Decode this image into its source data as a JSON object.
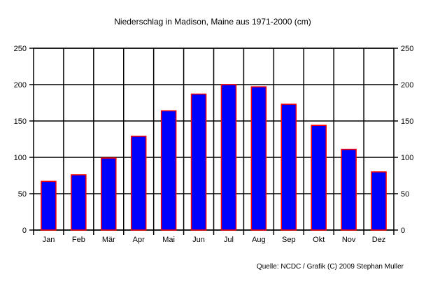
{
  "chart_data": {
    "type": "bar",
    "title": "Niederschlag in Madison, Maine aus 1971-2000 (cm)",
    "categories": [
      "Jan",
      "Feb",
      "Mär",
      "Apr",
      "Mai",
      "Jun",
      "Jul",
      "Aug",
      "Sep",
      "Okt",
      "Nov",
      "Dez"
    ],
    "values": [
      67,
      76,
      99,
      129,
      164,
      187,
      200,
      197,
      173,
      144,
      111,
      80
    ],
    "ylim": [
      0,
      250
    ],
    "yticks": [
      0,
      50,
      100,
      150,
      200,
      250
    ],
    "xlabel": "",
    "ylabel": "",
    "grid": true,
    "source": "Quelle: NCDC / Grafik (C) 2009 Stephan Muller",
    "bar_fill": "#0000FF",
    "bar_stroke": "#FF0000"
  }
}
